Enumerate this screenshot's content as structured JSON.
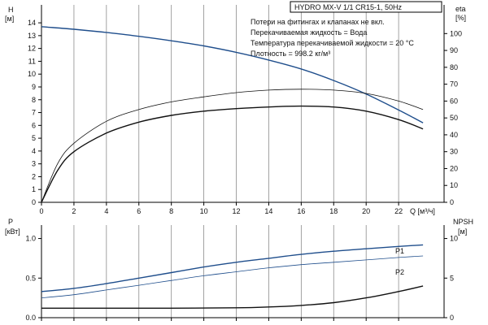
{
  "chart_data": [
    {
      "type": "line",
      "panel": "pump-performance",
      "title": "HYDRO MX-V 1/1 CR15-1, 50Hz",
      "notes": [
        "Потери на фитингах и клапанах не вкл.",
        "Перекачиваемая жидкость = Вода",
        "Температура перекачиваемой жидкости = 20 °C",
        "Плотность = 998.2 кг/м³"
      ],
      "xlabel": "Q [м³/ч]",
      "xlim": [
        0,
        24.8
      ],
      "xticks": [
        0,
        2,
        4,
        6,
        8,
        10,
        12,
        14,
        16,
        18,
        20,
        22
      ],
      "left_axis": {
        "label_line1": "H",
        "label_line2": "[м]",
        "ylim": [
          0,
          15.4
        ],
        "ticks": [
          0,
          1,
          2,
          3,
          4,
          5,
          6,
          7,
          8,
          9,
          10,
          11,
          12,
          13,
          14
        ]
      },
      "right_axis": {
        "label_line1": "eta",
        "label_line2": "[%]",
        "ylim": [
          0,
          117
        ],
        "ticks": [
          0,
          10,
          20,
          30,
          40,
          50,
          60,
          70,
          80,
          90,
          100
        ]
      },
      "series": [
        {
          "axis": "left",
          "color": "#1f4e8c",
          "width": 1.4,
          "x": [
            0,
            2,
            4,
            6,
            8,
            10,
            12,
            14,
            16,
            18,
            20,
            22,
            23.5
          ],
          "y": [
            13.7,
            13.5,
            13.25,
            12.95,
            12.6,
            12.2,
            11.7,
            11.1,
            10.4,
            9.5,
            8.45,
            7.2,
            6.2
          ]
        },
        {
          "axis": "right",
          "color": "#111111",
          "width": 0.8,
          "x": [
            0,
            1,
            2,
            4,
            6,
            8,
            10,
            12,
            14,
            16,
            18,
            20,
            22,
            23.5
          ],
          "y": [
            0,
            23,
            35,
            48,
            55,
            59.5,
            62.5,
            65,
            66.5,
            67,
            66.5,
            64.5,
            60,
            55
          ]
        },
        {
          "axis": "right",
          "color": "#111111",
          "width": 1.4,
          "x": [
            0,
            1,
            2,
            4,
            6,
            8,
            10,
            12,
            14,
            16,
            18,
            20,
            22,
            23.5
          ],
          "y": [
            0,
            19,
            30,
            41,
            47.5,
            51.5,
            54,
            55.5,
            56.5,
            57,
            56.5,
            54,
            49,
            43.5
          ]
        }
      ]
    },
    {
      "type": "line",
      "panel": "power-npsh",
      "xlim": [
        0,
        24.8
      ],
      "xticks": [
        0,
        2,
        4,
        6,
        8,
        10,
        12,
        14,
        16,
        18,
        20,
        22
      ],
      "left_axis": {
        "label_line1": "P",
        "label_line2": "[кВт]",
        "ylim": [
          0,
          1.17
        ],
        "ticks": [
          "0.0",
          "0.5",
          "1.0"
        ],
        "tick_values": [
          0,
          0.5,
          1.0
        ]
      },
      "right_axis": {
        "label_line1": "NPSH",
        "label_line2": "[м]",
        "ylim": [
          0,
          11.7
        ],
        "ticks": [
          0,
          5,
          10
        ]
      },
      "series": [
        {
          "name": "P1",
          "axis": "left",
          "color": "#1f4e8c",
          "width": 1.4,
          "x": [
            0,
            2,
            4,
            6,
            8,
            10,
            12,
            14,
            16,
            18,
            20,
            22,
            23.5
          ],
          "y": [
            0.33,
            0.37,
            0.43,
            0.5,
            0.57,
            0.64,
            0.7,
            0.75,
            0.8,
            0.84,
            0.87,
            0.9,
            0.92
          ]
        },
        {
          "name": "P2",
          "axis": "left",
          "color": "#1f4e8c",
          "width": 0.8,
          "x": [
            0,
            2,
            4,
            6,
            8,
            10,
            12,
            14,
            16,
            18,
            20,
            22,
            23.5
          ],
          "y": [
            0.25,
            0.29,
            0.35,
            0.41,
            0.47,
            0.53,
            0.58,
            0.63,
            0.67,
            0.7,
            0.73,
            0.76,
            0.78
          ]
        },
        {
          "axis": "right",
          "color": "#111111",
          "width": 1.4,
          "x": [
            0,
            4,
            8,
            12,
            14,
            16,
            18,
            20,
            22,
            23.5
          ],
          "y": [
            1.2,
            1.2,
            1.2,
            1.25,
            1.35,
            1.55,
            1.9,
            2.5,
            3.3,
            4.0
          ]
        }
      ]
    }
  ]
}
